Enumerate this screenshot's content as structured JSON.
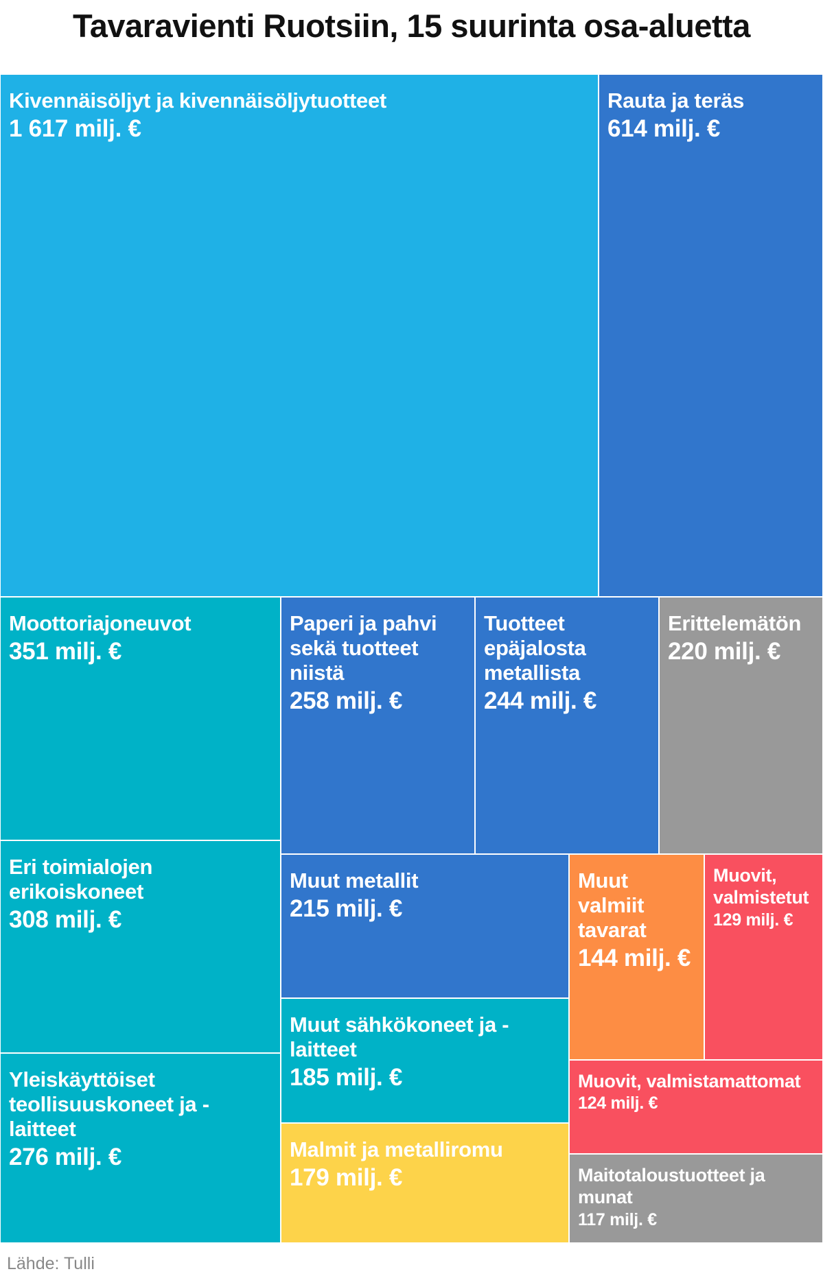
{
  "chart_data": {
    "type": "treemap",
    "title": "Tavaravienti Ruotsiin, 15 suurinta osa-aluetta",
    "unit": "milj. €",
    "source": "Lähde: Tulli",
    "nodes": [
      {
        "label": "Kivennäisöljyt ja kivennäisöljytuotteet",
        "value": 1617,
        "value_label": "1 617 milj. €",
        "color": "#1fb1e6"
      },
      {
        "label": "Rauta ja teräs",
        "value": 614,
        "value_label": "614 milj. €",
        "color": "#3176cc"
      },
      {
        "label": "Moottoriajoneuvot",
        "value": 351,
        "value_label": "351 milj. €",
        "color": "#00b2c7"
      },
      {
        "label": "Eri toimialojen erikoiskoneet",
        "value": 308,
        "value_label": "308 milj. €",
        "color": "#00b2c7"
      },
      {
        "label": "Yleiskäyttöiset teollisuuskoneet ja -laitteet",
        "value": 276,
        "value_label": "276 milj. €",
        "color": "#00b2c7"
      },
      {
        "label": "Paperi ja pahvi sekä tuotteet niistä",
        "value": 258,
        "value_label": "258 milj. €",
        "color": "#3176cc"
      },
      {
        "label": "Tuotteet epäjalosta metallista",
        "value": 244,
        "value_label": "244 milj. €",
        "color": "#3176cc"
      },
      {
        "label": "Erittelemätön",
        "value": 220,
        "value_label": "220 milj. €",
        "color": "#999999"
      },
      {
        "label": "Muut metallit",
        "value": 215,
        "value_label": "215 milj. €",
        "color": "#3176cc"
      },
      {
        "label": "Muut sähkökoneet ja -laitteet",
        "value": 185,
        "value_label": "185 milj. €",
        "color": "#00b2c7"
      },
      {
        "label": "Malmit ja metalliromu",
        "value": 179,
        "value_label": "179 milj. €",
        "color": "#fdd34a"
      },
      {
        "label": "Muut valmiit tavarat",
        "value": 144,
        "value_label": "144 milj. €",
        "color": "#fd8d44"
      },
      {
        "label": "Muovit, valmistetut",
        "value": 129,
        "value_label": "129 milj. €",
        "color": "#f9505f"
      },
      {
        "label": "Muovit, valmistamattomat",
        "value": 124,
        "value_label": "124 milj. €",
        "color": "#f9505f"
      },
      {
        "label": "Maitotaloustuotteet ja munat",
        "value": 117,
        "value_label": "117 milj. €",
        "color": "#999999"
      }
    ]
  }
}
